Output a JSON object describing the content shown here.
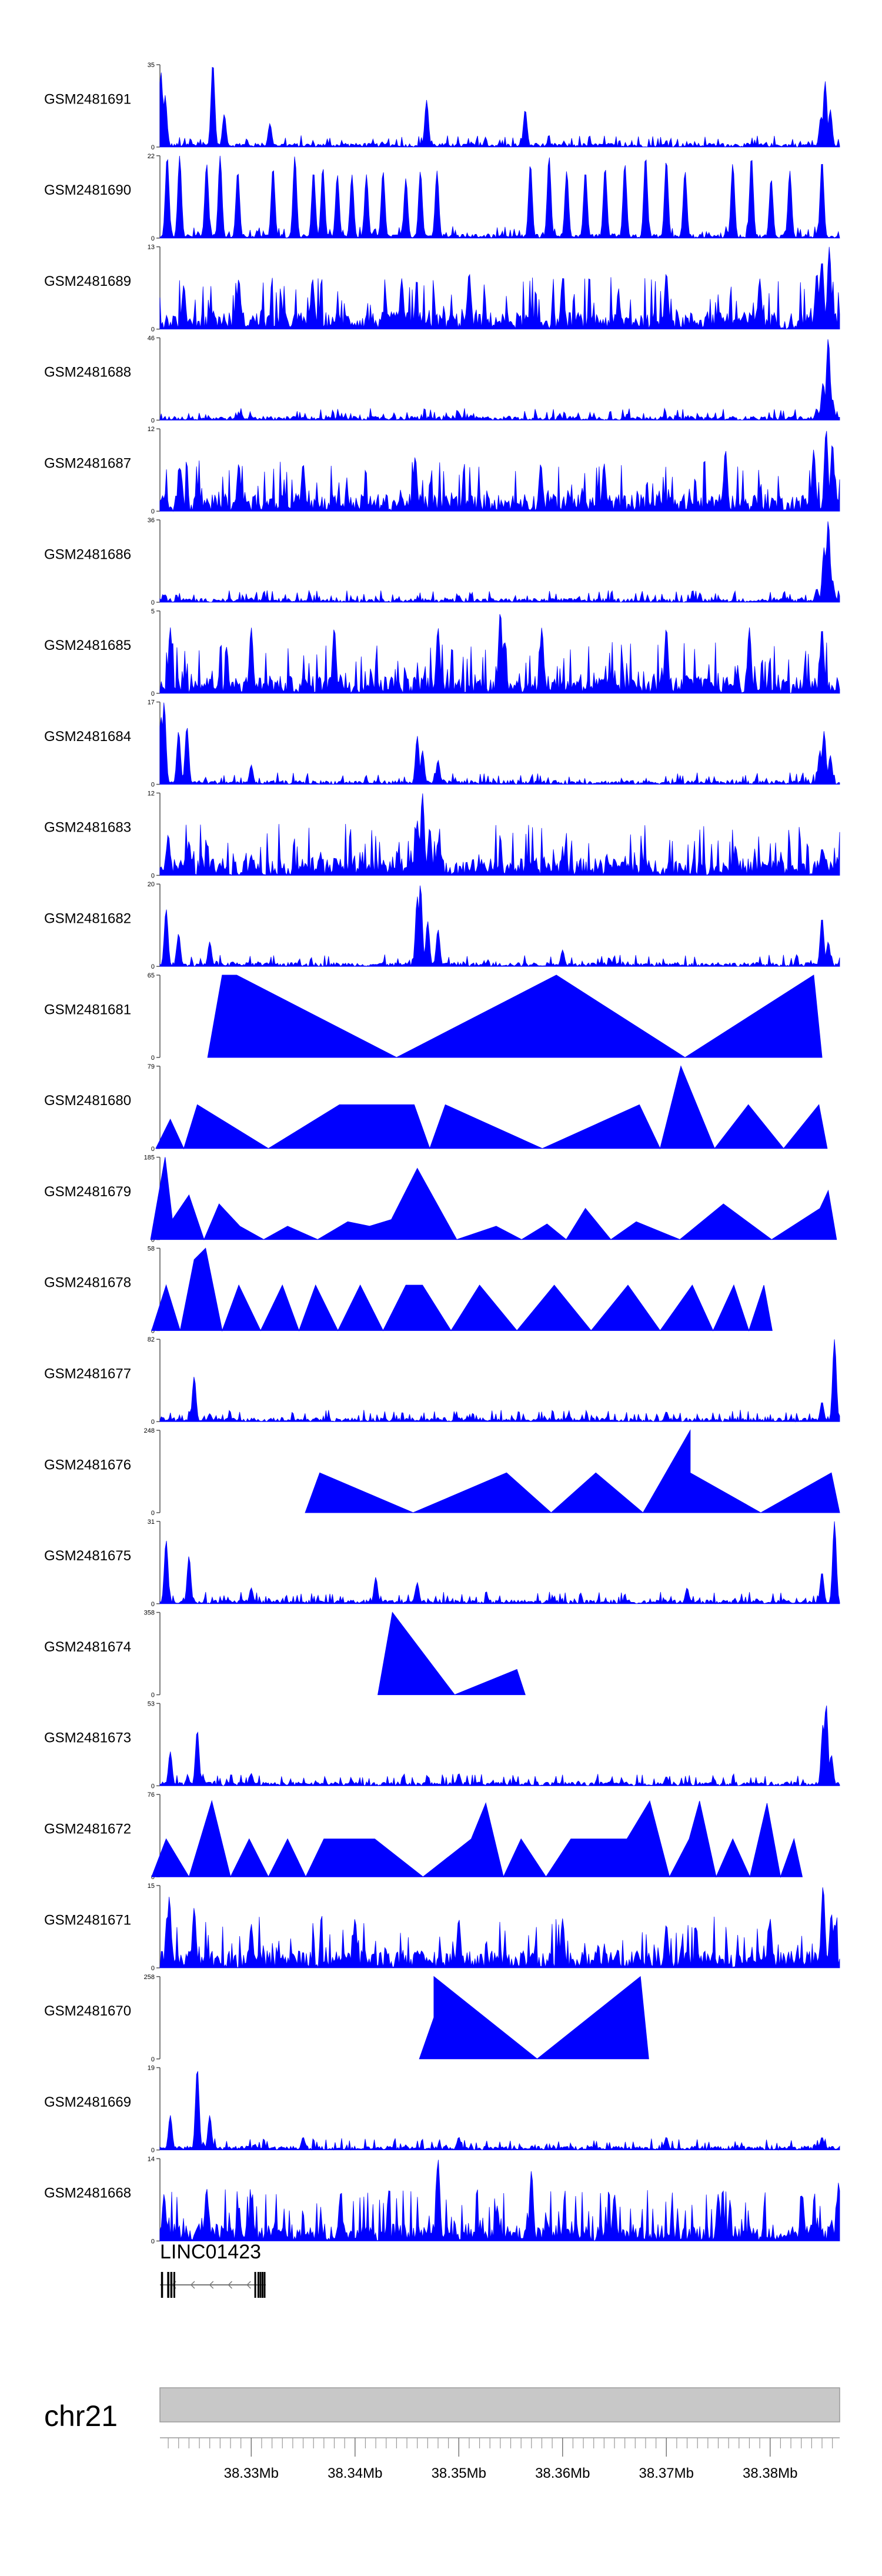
{
  "chart_data": {
    "type": "area",
    "title": "",
    "chromosome": "chr21",
    "xlim_mb": [
      38.3212,
      38.3867
    ],
    "color": "#0000ff",
    "x_tick_labels": [
      {
        "value": 38.33,
        "label": "38.33Mb"
      },
      {
        "value": 38.34,
        "label": "38.34Mb"
      },
      {
        "value": 38.35,
        "label": "38.35Mb"
      },
      {
        "value": 38.36,
        "label": "38.36Mb"
      },
      {
        "value": 38.37,
        "label": "38.37Mb"
      },
      {
        "value": 38.38,
        "label": "38.38Mb"
      }
    ],
    "gene": {
      "name": "LINC01423",
      "start_mb": 38.3212,
      "end_mb": 38.3314,
      "strand": "-",
      "exons_mb": [
        [
          38.3213,
          38.3215
        ],
        [
          38.3219,
          38.3221
        ],
        [
          38.3222,
          38.3224
        ],
        [
          38.3225,
          38.3226
        ],
        [
          38.3303,
          38.3304
        ],
        [
          38.3306,
          38.3307
        ],
        [
          38.3308,
          38.3309
        ],
        [
          38.331,
          38.3311
        ],
        [
          38.3312,
          38.3313
        ]
      ]
    },
    "tracks": [
      {
        "name": "GSM2481691",
        "ymax": "35",
        "peaks": [
          [
            38.3213,
            32
          ],
          [
            38.3217,
            22
          ],
          [
            38.3263,
            36
          ],
          [
            38.3274,
            14
          ],
          [
            38.3318,
            10
          ],
          [
            38.3469,
            20
          ],
          [
            38.3469,
            11
          ],
          [
            38.3564,
            16
          ],
          [
            38.3849,
            13
          ],
          [
            38.3853,
            28
          ],
          [
            38.3858,
            16
          ]
        ]
      },
      {
        "name": "GSM2481690",
        "ymax": "22",
        "peaks": [
          [
            38.3219,
            22
          ],
          [
            38.3231,
            22
          ],
          [
            38.3257,
            20
          ],
          [
            38.327,
            22
          ],
          [
            38.3287,
            18
          ],
          [
            38.3321,
            19
          ],
          [
            38.3342,
            22
          ],
          [
            38.336,
            18
          ],
          [
            38.3369,
            19
          ],
          [
            38.3383,
            17
          ],
          [
            38.3397,
            17
          ],
          [
            38.3411,
            17
          ],
          [
            38.3427,
            18
          ],
          [
            38.3449,
            16
          ],
          [
            38.3463,
            18
          ],
          [
            38.3479,
            18
          ],
          [
            38.3569,
            20
          ],
          [
            38.3587,
            22
          ],
          [
            38.3604,
            18
          ],
          [
            38.3622,
            18
          ],
          [
            38.3641,
            19
          ],
          [
            38.366,
            20
          ],
          [
            38.368,
            22
          ],
          [
            38.37,
            21
          ],
          [
            38.3718,
            18
          ],
          [
            38.3764,
            20
          ],
          [
            38.3782,
            22
          ],
          [
            38.3801,
            16
          ],
          [
            38.3819,
            18
          ],
          [
            38.385,
            21
          ]
        ]
      },
      {
        "name": "GSM2481689",
        "ymax": "13",
        "peaks": [
          [
            38.3235,
            7
          ],
          [
            38.3288,
            8
          ],
          [
            38.3359,
            8
          ],
          [
            38.3445,
            8
          ],
          [
            38.351,
            9
          ],
          [
            38.36,
            8
          ],
          [
            38.37,
            9
          ],
          [
            38.379,
            8
          ],
          [
            38.3845,
            9
          ],
          [
            38.385,
            11
          ],
          [
            38.3857,
            13
          ]
        ]
      },
      {
        "name": "GSM2481688",
        "ymax": "46",
        "peaks": [
          [
            38.329,
            4
          ],
          [
            38.35,
            4
          ],
          [
            38.3845,
            6
          ],
          [
            38.3851,
            21
          ],
          [
            38.3856,
            46
          ],
          [
            38.386,
            12
          ]
        ]
      },
      {
        "name": "GSM2481687",
        "ymax": "12",
        "peaks": [
          [
            38.3232,
            6
          ],
          [
            38.3288,
            7
          ],
          [
            38.335,
            7
          ],
          [
            38.3458,
            8
          ],
          [
            38.3579,
            7
          ],
          [
            38.364,
            7
          ],
          [
            38.3757,
            9
          ],
          [
            38.3842,
            9
          ],
          [
            38.3854,
            12
          ],
          [
            38.386,
            10
          ]
        ]
      },
      {
        "name": "GSM2481686",
        "ymax": "36",
        "peaks": [
          [
            38.33,
            2
          ],
          [
            38.35,
            3
          ],
          [
            38.3845,
            6
          ],
          [
            38.3852,
            24
          ],
          [
            38.3856,
            36
          ],
          [
            38.386,
            10
          ]
        ]
      },
      {
        "name": "GSM2481685",
        "ymax": "5",
        "peaks": [
          [
            38.3222,
            4
          ],
          [
            38.33,
            4
          ],
          [
            38.338,
            4
          ],
          [
            38.348,
            4
          ],
          [
            38.354,
            5
          ],
          [
            38.358,
            4
          ],
          [
            38.37,
            4
          ],
          [
            38.378,
            4
          ],
          [
            38.385,
            4
          ]
        ]
      },
      {
        "name": "GSM2481684",
        "ymax": "17",
        "peaks": [
          [
            38.3213,
            14
          ],
          [
            38.3216,
            17
          ],
          [
            38.323,
            11
          ],
          [
            38.3238,
            12
          ],
          [
            38.33,
            4
          ],
          [
            38.346,
            10
          ],
          [
            38.3465,
            7
          ],
          [
            38.348,
            5
          ],
          [
            38.3848,
            7
          ],
          [
            38.3852,
            11
          ],
          [
            38.3858,
            6
          ]
        ]
      },
      {
        "name": "GSM2481683",
        "ymax": "12",
        "peaks": [
          [
            38.322,
            6
          ],
          [
            38.324,
            5
          ],
          [
            38.33,
            3
          ],
          [
            38.346,
            8
          ],
          [
            38.3465,
            12
          ],
          [
            38.3472,
            7
          ],
          [
            38.348,
            5
          ],
          [
            38.36,
            3
          ],
          [
            38.385,
            4
          ]
        ]
      },
      {
        "name": "GSM2481682",
        "ymax": "20",
        "peaks": [
          [
            38.3218,
            14
          ],
          [
            38.323,
            8
          ],
          [
            38.326,
            6
          ],
          [
            38.346,
            17
          ],
          [
            38.3463,
            20
          ],
          [
            38.347,
            11
          ],
          [
            38.348,
            9
          ],
          [
            38.36,
            4
          ],
          [
            38.385,
            12
          ],
          [
            38.3856,
            6
          ]
        ]
      },
      {
        "name": "GSM2481681",
        "ymax": "65",
        "peaks": [
          [
            38.3272,
            65
          ],
          [
            38.3286,
            65
          ],
          [
            38.3594,
            65
          ],
          [
            38.3842,
            65
          ]
        ]
      },
      {
        "name": "GSM2481680",
        "ymax": "79",
        "peaks": [
          [
            38.3222,
            28
          ],
          [
            38.3248,
            42
          ],
          [
            38.3385,
            42
          ],
          [
            38.3408,
            42
          ],
          [
            38.3432,
            42
          ],
          [
            38.3457,
            42
          ],
          [
            38.3487,
            42
          ],
          [
            38.3674,
            42
          ],
          [
            38.3714,
            79
          ],
          [
            38.3779,
            42
          ],
          [
            38.3847,
            42
          ]
        ]
      },
      {
        "name": "GSM2481679",
        "ymax": "185",
        "peaks": [
          [
            38.3217,
            185
          ],
          [
            38.3224,
            45
          ],
          [
            38.324,
            100
          ],
          [
            38.3269,
            80
          ],
          [
            38.3289,
            30
          ],
          [
            38.3335,
            30
          ],
          [
            38.3393,
            40
          ],
          [
            38.3414,
            30
          ],
          [
            38.3435,
            45
          ],
          [
            38.346,
            160
          ],
          [
            38.3536,
            30
          ],
          [
            38.3585,
            35
          ],
          [
            38.3622,
            70
          ],
          [
            38.3671,
            40
          ],
          [
            38.3755,
            80
          ],
          [
            38.3848,
            70
          ],
          [
            38.3856,
            110
          ]
        ]
      },
      {
        "name": "GSM2481678",
        "ymax": "58",
        "peaks": [
          [
            38.3218,
            32
          ],
          [
            38.3245,
            50
          ],
          [
            38.3256,
            58
          ],
          [
            38.3288,
            32
          ],
          [
            38.333,
            32
          ],
          [
            38.3362,
            32
          ],
          [
            38.3405,
            32
          ],
          [
            38.3449,
            32
          ],
          [
            38.3465,
            32
          ],
          [
            38.352,
            32
          ],
          [
            38.3592,
            32
          ],
          [
            38.3663,
            32
          ],
          [
            38.3725,
            32
          ],
          [
            38.3765,
            32
          ],
          [
            38.3794,
            32
          ]
        ]
      },
      {
        "name": "GSM2481677",
        "ymax": "82",
        "peaks": [
          [
            38.3245,
            45
          ],
          [
            38.326,
            8
          ],
          [
            38.35,
            4
          ],
          [
            38.37,
            10
          ],
          [
            38.385,
            20
          ],
          [
            38.3862,
            82
          ]
        ]
      },
      {
        "name": "GSM2481676",
        "ymax": "248",
        "peaks": [
          [
            38.3366,
            120
          ],
          [
            38.3546,
            120
          ],
          [
            38.3632,
            120
          ],
          [
            38.3723,
            248
          ],
          [
            38.3723,
            120
          ],
          [
            38.3859,
            120
          ]
        ]
      },
      {
        "name": "GSM2481675",
        "ymax": "31",
        "peaks": [
          [
            38.3218,
            24
          ],
          [
            38.324,
            18
          ],
          [
            38.33,
            6
          ],
          [
            38.342,
            10
          ],
          [
            38.346,
            8
          ],
          [
            38.372,
            6
          ],
          [
            38.385,
            12
          ],
          [
            38.3862,
            31
          ]
        ]
      },
      {
        "name": "GSM2481674",
        "ymax": "358",
        "peaks": [
          [
            38.3436,
            358
          ],
          [
            38.3556,
            110
          ]
        ]
      },
      {
        "name": "GSM2481673",
        "ymax": "53",
        "peaks": [
          [
            38.3222,
            22
          ],
          [
            38.3248,
            36
          ],
          [
            38.33,
            8
          ],
          [
            38.35,
            8
          ],
          [
            38.37,
            6
          ],
          [
            38.3851,
            40
          ],
          [
            38.3854,
            53
          ],
          [
            38.3859,
            20
          ]
        ]
      },
      {
        "name": "GSM2481672",
        "ymax": "76",
        "peaks": [
          [
            38.3218,
            35
          ],
          [
            38.3262,
            70
          ],
          [
            38.3298,
            35
          ],
          [
            38.3335,
            35
          ],
          [
            38.337,
            35
          ],
          [
            38.3388,
            35
          ],
          [
            38.3404,
            35
          ],
          [
            38.3419,
            35
          ],
          [
            38.3512,
            35
          ],
          [
            38.3526,
            68
          ],
          [
            38.356,
            35
          ],
          [
            38.3608,
            35
          ],
          [
            38.3625,
            35
          ],
          [
            38.3642,
            35
          ],
          [
            38.3662,
            35
          ],
          [
            38.3684,
            70
          ],
          [
            38.3722,
            35
          ],
          [
            38.3732,
            70
          ],
          [
            38.3764,
            35
          ],
          [
            38.3797,
            68
          ],
          [
            38.3823,
            35
          ]
        ]
      },
      {
        "name": "GSM2481671",
        "ymax": "15",
        "peaks": [
          [
            38.3221,
            13
          ],
          [
            38.3245,
            11
          ],
          [
            38.33,
            8
          ],
          [
            38.34,
            9
          ],
          [
            38.35,
            9
          ],
          [
            38.36,
            9
          ],
          [
            38.37,
            8
          ],
          [
            38.38,
            9
          ],
          [
            38.3851,
            15
          ],
          [
            38.3859,
            10
          ]
        ]
      },
      {
        "name": "GSM2481670",
        "ymax": "258",
        "peaks": [
          [
            38.3476,
            130
          ],
          [
            38.3476,
            258
          ],
          [
            38.3675,
            258
          ]
        ]
      },
      {
        "name": "GSM2481669",
        "ymax": "19",
        "peaks": [
          [
            38.3222,
            8
          ],
          [
            38.3248,
            19
          ],
          [
            38.326,
            8
          ],
          [
            38.335,
            3
          ],
          [
            38.35,
            3
          ],
          [
            38.37,
            3
          ],
          [
            38.385,
            3
          ]
        ]
      },
      {
        "name": "GSM2481668",
        "ymax": "14",
        "peaks": [
          [
            38.3216,
            8
          ],
          [
            38.3257,
            9
          ],
          [
            38.33,
            7
          ],
          [
            38.3386,
            8
          ],
          [
            38.348,
            14
          ],
          [
            38.3537,
            6
          ],
          [
            38.357,
            12
          ],
          [
            38.365,
            8
          ],
          [
            38.375,
            8
          ],
          [
            38.3831,
            8
          ],
          [
            38.3866,
            10
          ]
        ]
      }
    ]
  }
}
